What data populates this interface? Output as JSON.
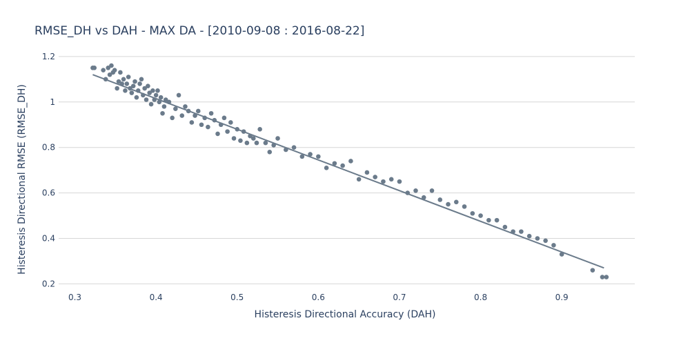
{
  "chart_data": {
    "type": "scatter",
    "title": "RMSE_DH vs DAH - MAX DA - [2010-09-08 : 2016-08-22]",
    "xlabel": "Histeresis Directional Accuracy (DAH)",
    "ylabel": "Histeresis Directional RMSE (RMSE_DH)",
    "xlim": [
      0.28,
      0.99
    ],
    "ylim": [
      0.18,
      1.23
    ],
    "xticks": [
      0.3,
      0.4,
      0.5,
      0.6,
      0.7,
      0.8,
      0.9
    ],
    "xtick_labels": [
      "0.3",
      "0.4",
      "0.5",
      "0.6",
      "0.7",
      "0.8",
      "0.9"
    ],
    "yticks": [
      0.2,
      0.4,
      0.6,
      0.8,
      1.0,
      1.2
    ],
    "ytick_labels": [
      "0.2",
      "0.4",
      "0.6",
      "0.8",
      "1",
      "1.2"
    ],
    "grid": true,
    "legend": "none",
    "colors": {
      "points": "#6b7b8b",
      "trend": "#6b7b8b"
    },
    "trendline": {
      "x": [
        0.322,
        0.952
      ],
      "y": [
        1.12,
        0.27
      ]
    },
    "series": [
      {
        "x": [
          0.322,
          0.324,
          0.335,
          0.338,
          0.341,
          0.343,
          0.345,
          0.347,
          0.349,
          0.352,
          0.354,
          0.356,
          0.358,
          0.36,
          0.362,
          0.364,
          0.366,
          0.368,
          0.37,
          0.372,
          0.374,
          0.376,
          0.378,
          0.38,
          0.382,
          0.384,
          0.386,
          0.388,
          0.39,
          0.392,
          0.394,
          0.396,
          0.398,
          0.4,
          0.402,
          0.404,
          0.406,
          0.408,
          0.41,
          0.412,
          0.416,
          0.42,
          0.424,
          0.428,
          0.432,
          0.436,
          0.44,
          0.444,
          0.448,
          0.452,
          0.456,
          0.46,
          0.464,
          0.468,
          0.472,
          0.476,
          0.48,
          0.484,
          0.488,
          0.492,
          0.496,
          0.5,
          0.504,
          0.508,
          0.512,
          0.516,
          0.52,
          0.524,
          0.528,
          0.535,
          0.54,
          0.545,
          0.55,
          0.56,
          0.57,
          0.58,
          0.59,
          0.6,
          0.61,
          0.62,
          0.63,
          0.64,
          0.65,
          0.66,
          0.67,
          0.68,
          0.69,
          0.7,
          0.71,
          0.72,
          0.73,
          0.74,
          0.75,
          0.76,
          0.77,
          0.78,
          0.79,
          0.8,
          0.81,
          0.82,
          0.83,
          0.84,
          0.85,
          0.86,
          0.87,
          0.88,
          0.89,
          0.9,
          0.938,
          0.95,
          0.955
        ],
        "y": [
          1.15,
          1.15,
          1.14,
          1.1,
          1.15,
          1.12,
          1.16,
          1.13,
          1.14,
          1.06,
          1.09,
          1.13,
          1.08,
          1.1,
          1.05,
          1.08,
          1.11,
          1.06,
          1.04,
          1.07,
          1.09,
          1.02,
          1.05,
          1.08,
          1.1,
          1.03,
          1.06,
          1.01,
          1.07,
          1.04,
          0.99,
          1.05,
          1.01,
          1.03,
          1.05,
          1.0,
          1.02,
          0.95,
          0.98,
          1.01,
          1.0,
          0.93,
          0.97,
          1.03,
          0.94,
          0.98,
          0.96,
          0.91,
          0.94,
          0.96,
          0.9,
          0.93,
          0.89,
          0.95,
          0.92,
          0.86,
          0.9,
          0.93,
          0.87,
          0.91,
          0.84,
          0.88,
          0.83,
          0.87,
          0.82,
          0.85,
          0.84,
          0.82,
          0.88,
          0.82,
          0.78,
          0.81,
          0.84,
          0.79,
          0.8,
          0.76,
          0.77,
          0.76,
          0.71,
          0.73,
          0.72,
          0.74,
          0.66,
          0.69,
          0.67,
          0.65,
          0.66,
          0.65,
          0.6,
          0.61,
          0.58,
          0.61,
          0.57,
          0.55,
          0.56,
          0.54,
          0.51,
          0.5,
          0.48,
          0.48,
          0.45,
          0.43,
          0.43,
          0.41,
          0.4,
          0.39,
          0.37,
          0.33,
          0.26,
          0.23,
          0.23
        ]
      }
    ]
  }
}
